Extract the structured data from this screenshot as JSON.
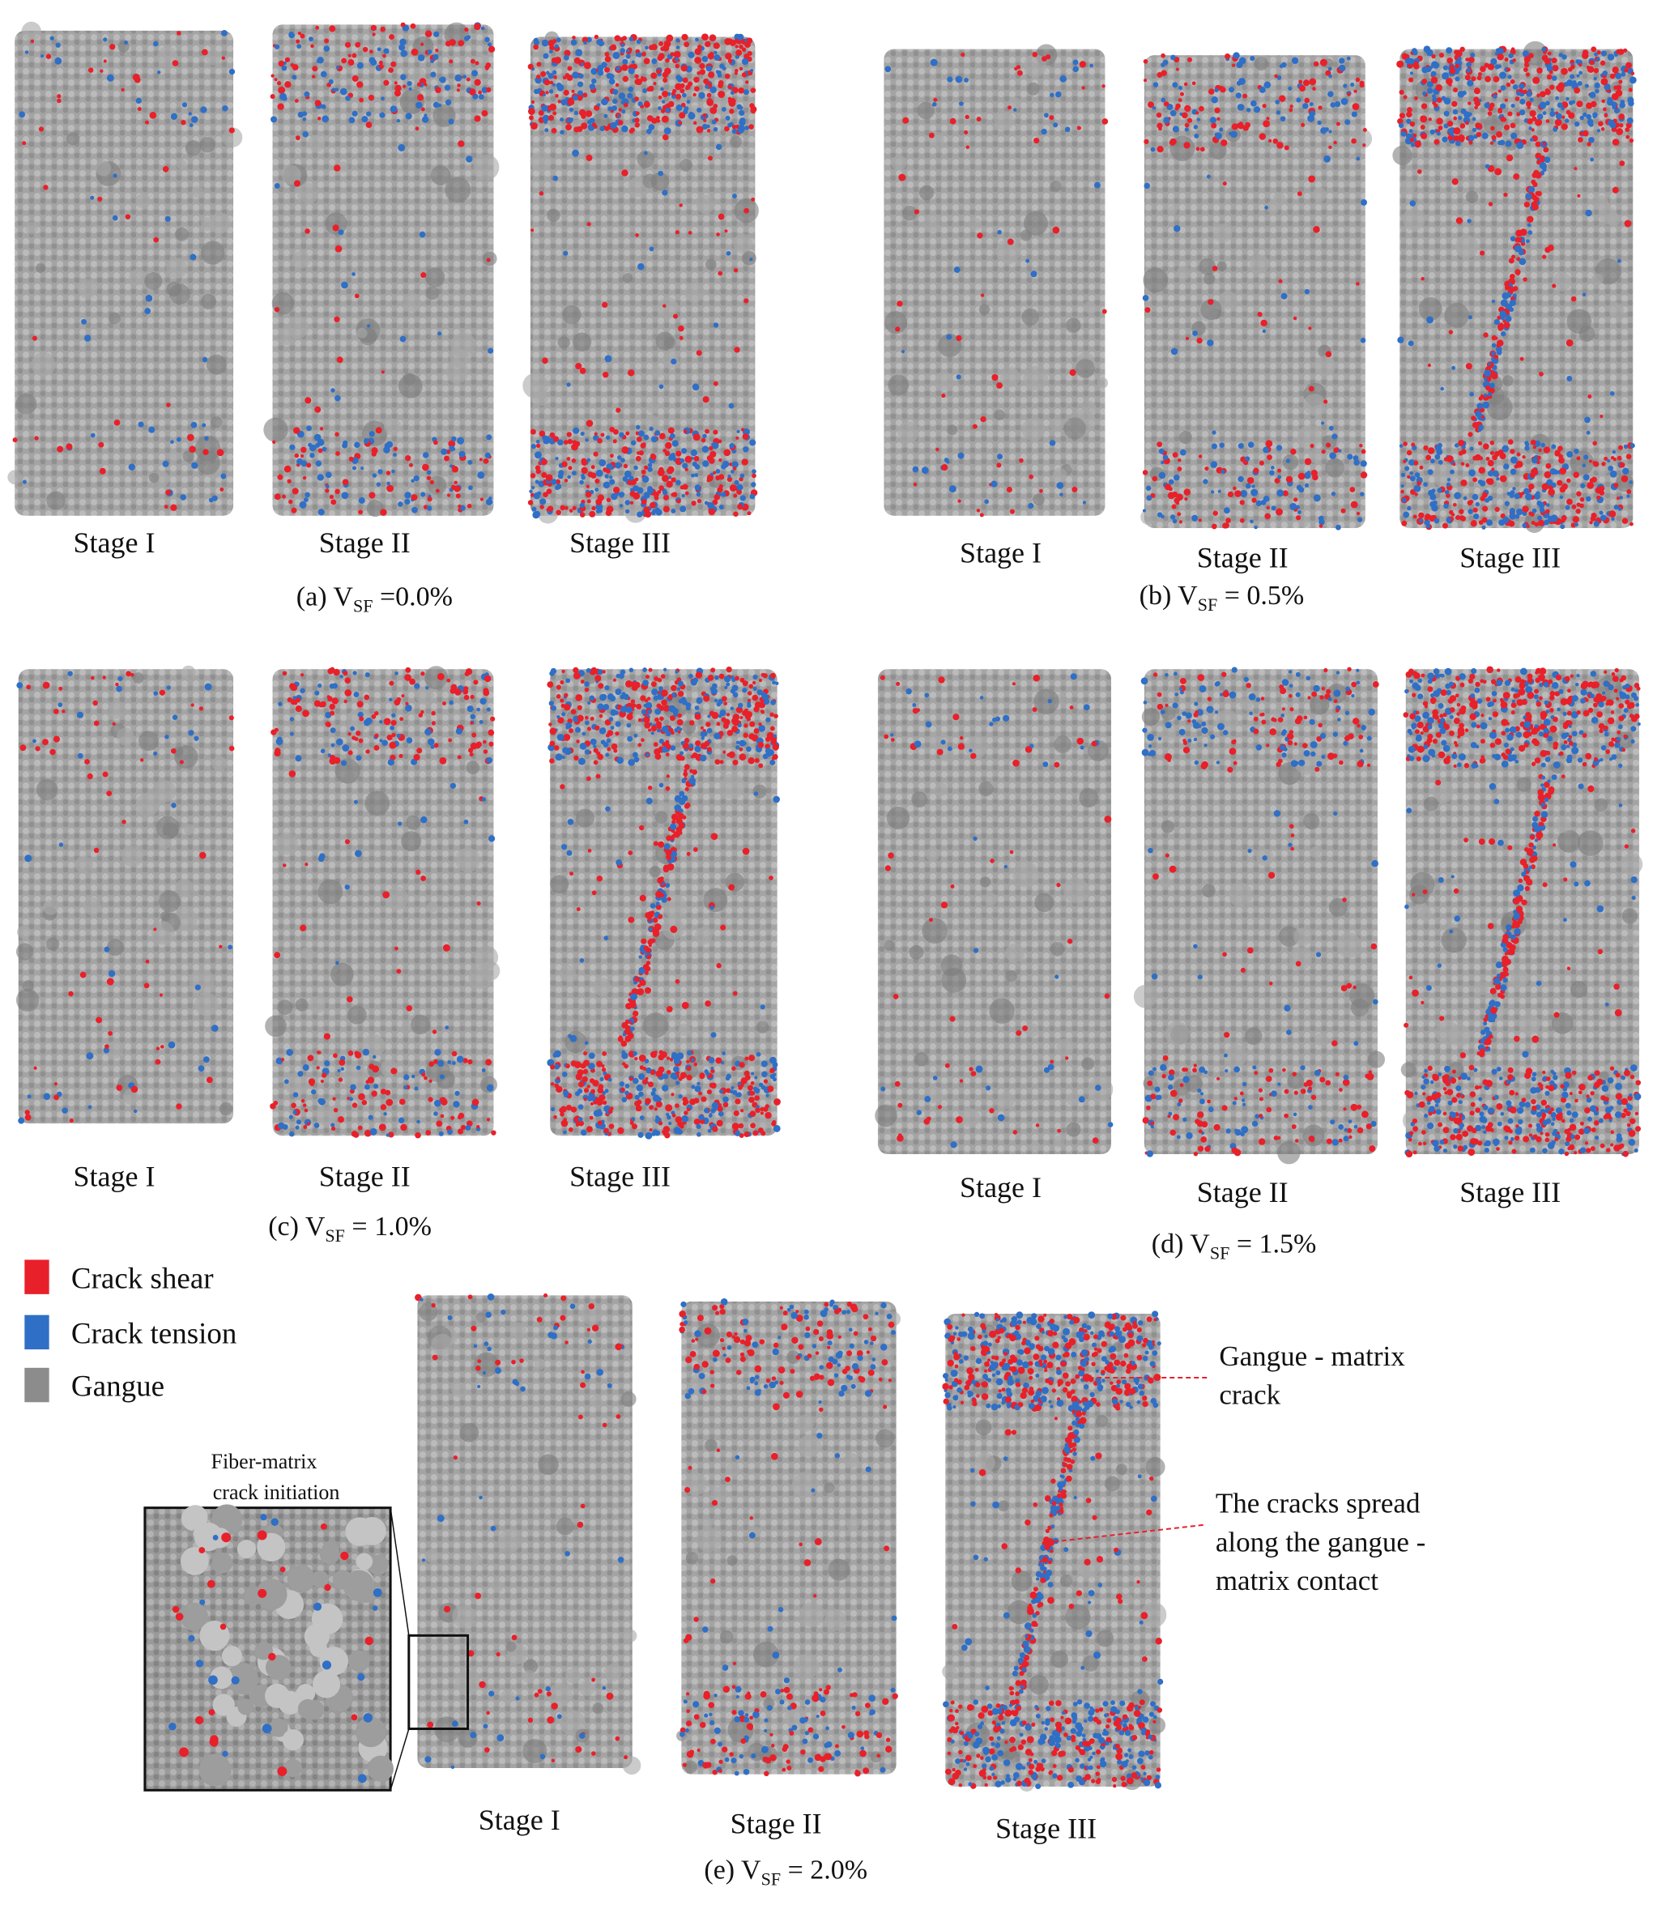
{
  "panels": [
    {
      "stages": [
        "Stage I",
        "Stage II",
        "Stage III"
      ],
      "caption": {
        "prefix": "(a) V",
        "sub": "SF",
        "suffix": " =0.0%"
      }
    },
    {
      "stages": [
        "Stage I",
        "Stage II",
        "Stage III"
      ],
      "caption": {
        "prefix": "(b) V",
        "sub": "SF",
        "suffix": " = 0.5%"
      }
    },
    {
      "stages": [
        "Stage I",
        "Stage II",
        "Stage III"
      ],
      "caption": {
        "prefix": "(c) V",
        "sub": "SF",
        "suffix": " = 1.0%"
      }
    },
    {
      "stages": [
        "Stage I",
        "Stage II",
        "Stage III"
      ],
      "caption": {
        "prefix": "(d) V",
        "sub": "SF",
        "suffix": " = 1.5%"
      }
    },
    {
      "stages": [
        "Stage I",
        "Stage II",
        "Stage III"
      ],
      "caption": {
        "prefix": "(e) V",
        "sub": "SF",
        "suffix": " = 2.0%"
      }
    }
  ],
  "legend": [
    {
      "label": "Crack shear",
      "color": "#e8202a"
    },
    {
      "label": "Crack tension",
      "color": "#2f6fc6"
    },
    {
      "label": "Gangue",
      "color": "#8c8c8c"
    }
  ],
  "inset_label": [
    "Fiber-matrix",
    "crack initiation"
  ],
  "annotations": [
    {
      "lines": [
        "Gangue - matrix",
        "crack"
      ]
    },
    {
      "lines": [
        "The cracks spread",
        "along the gangue -",
        "matrix contact"
      ]
    }
  ]
}
